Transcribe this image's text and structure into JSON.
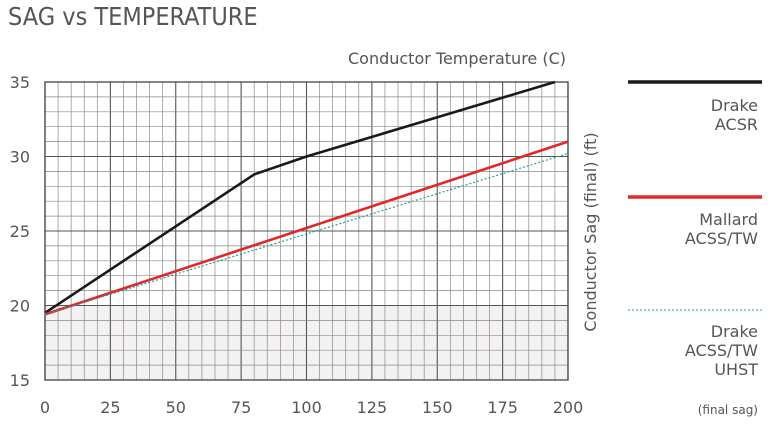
{
  "chart_data": {
    "type": "line",
    "title": "SAG vs TEMPERATURE",
    "xlabel": "Conductor Temperature (C)",
    "ylabel": "Conductor Sag (final) (ft)",
    "xlim": [
      0,
      200
    ],
    "ylim": [
      15,
      35
    ],
    "x_ticks": [
      0,
      25,
      50,
      75,
      100,
      125,
      150,
      175,
      200
    ],
    "y_ticks": [
      15,
      20,
      25,
      30,
      35
    ],
    "x_tick_labels": [
      "0",
      "25",
      "50",
      "75",
      "100",
      "125",
      "150",
      "175",
      "200"
    ],
    "y_tick_labels": [
      "15",
      "20",
      "25",
      "30",
      "35"
    ],
    "grid": true,
    "legend_position": "right",
    "series": [
      {
        "name": "Drake ACSR",
        "label_lines": [
          "Drake",
          "ACSR"
        ],
        "color": "#1a1a1a",
        "style": "solid",
        "points": [
          [
            0,
            19.5
          ],
          [
            80,
            28.8
          ],
          [
            100,
            30.0
          ],
          [
            195,
            35.0
          ]
        ]
      },
      {
        "name": "Mallard ACSS/TW",
        "label_lines": [
          "Mallard",
          "ACSS/TW"
        ],
        "color": "#e02828",
        "style": "solid",
        "points": [
          [
            0,
            19.4
          ],
          [
            200,
            31.0
          ]
        ]
      },
      {
        "name": "Drake ACSS/TW UHST",
        "label_lines": [
          "Drake",
          "ACSS/TW",
          "UHST"
        ],
        "note": "(final sag)",
        "color": "#2a9a9a",
        "style": "dotted",
        "points": [
          [
            0,
            19.4
          ],
          [
            200,
            30.2
          ]
        ]
      }
    ]
  }
}
